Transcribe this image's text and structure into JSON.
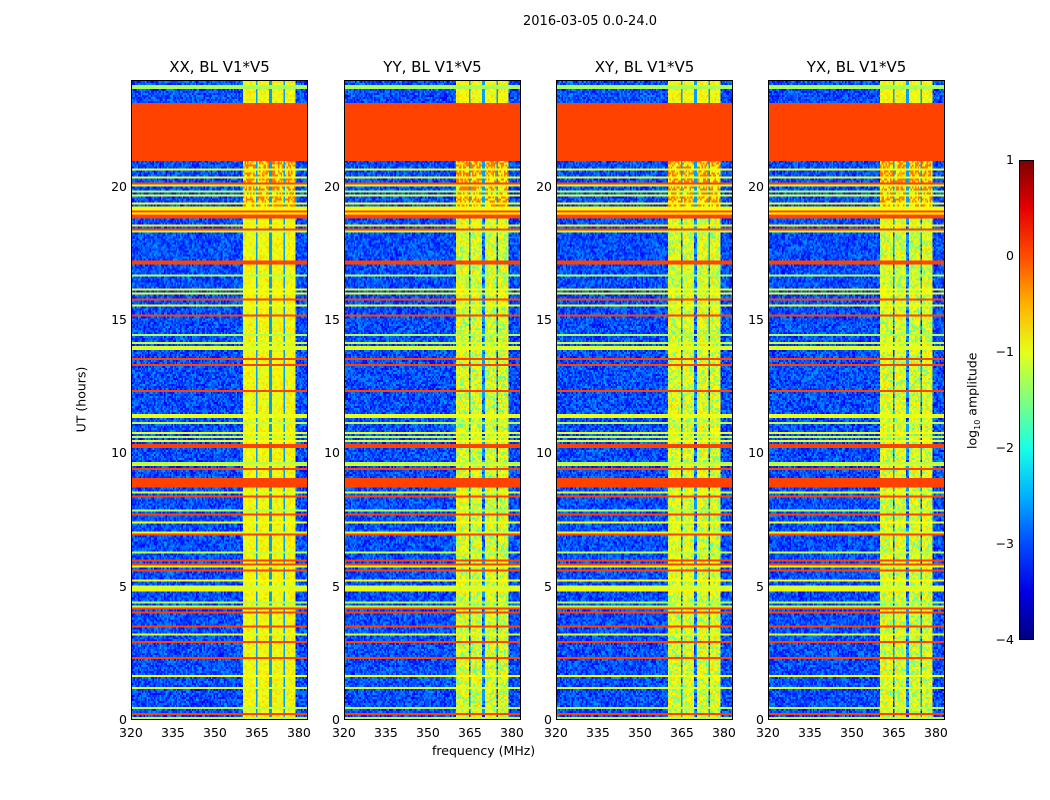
{
  "chart_data": {
    "type": "heatmap",
    "title": "2016-03-05 0.0-24.0",
    "panels": [
      {
        "title": "XX, BL V1*V5"
      },
      {
        "title": "YY, BL V1*V5"
      },
      {
        "title": "XY, BL V1*V5"
      },
      {
        "title": "YX, BL V1*V5"
      }
    ],
    "xlabel": "frequency (MHz)",
    "ylabel": "UT (hours)",
    "xlim": [
      320,
      383.2
    ],
    "ylim": [
      0,
      24
    ],
    "xticks": [
      "320",
      "335",
      "350",
      "365",
      "380"
    ],
    "xtick_values": [
      320,
      335,
      350,
      365,
      380
    ],
    "yticks": [
      "0",
      "5",
      "10",
      "15",
      "20"
    ],
    "ytick_values": [
      0,
      5,
      10,
      15,
      20
    ],
    "colorbar": {
      "label": "log10 amplitude",
      "label_main": "log",
      "label_sub": "10",
      "label_rest": " amplitude",
      "range": [
        -4,
        1
      ],
      "ticks": [
        "1",
        "0",
        "−1",
        "−2",
        "−3",
        "−4"
      ],
      "tick_values": [
        1,
        0,
        -1,
        -2,
        -3,
        -4
      ],
      "colormap": "jet"
    },
    "background_level": -3.0,
    "rfi_band_mhz": [
      360,
      379
    ],
    "rfi_level": -0.9,
    "subband_gaps_mhz": [
      365,
      370,
      375
    ],
    "flagged_level": 0.05,
    "flagged_time_ranges_hours": [
      [
        21.0,
        23.2
      ],
      [
        18.8,
        19.0
      ],
      [
        0.15,
        0.2
      ]
    ]
  }
}
